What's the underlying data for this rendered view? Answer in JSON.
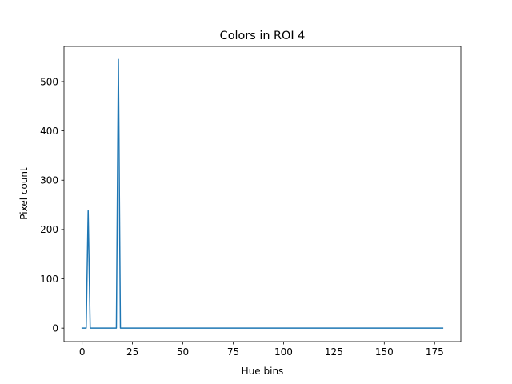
{
  "chart_data": {
    "type": "line",
    "title": "Colors in ROI 4",
    "xlabel": "Hue bins",
    "ylabel": "Pixel count",
    "xlim": [
      -9,
      188
    ],
    "ylim": [
      -27.3,
      571.3
    ],
    "xticks": [
      0,
      25,
      50,
      75,
      100,
      125,
      150,
      175
    ],
    "yticks": [
      0,
      100,
      200,
      300,
      400,
      500
    ],
    "grid": false,
    "legend": "none",
    "series": [
      {
        "color": "#1f77b4",
        "points": [
          [
            0,
            0
          ],
          [
            2,
            0
          ],
          [
            3,
            238
          ],
          [
            4,
            0
          ],
          [
            17,
            0
          ],
          [
            18,
            545
          ],
          [
            19,
            0
          ],
          [
            179,
            0
          ]
        ]
      }
    ]
  }
}
